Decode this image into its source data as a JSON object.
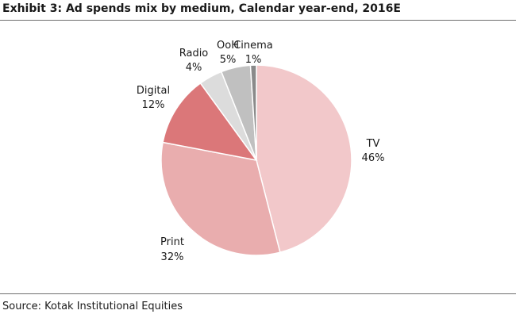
{
  "header": {
    "title": "Exhibit 3: Ad spends mix by medium, Calendar year-end, 2016E"
  },
  "footer": {
    "source": "Source: Kotak Institutional Equities"
  },
  "chart_data": {
    "type": "pie",
    "title": "Exhibit 3: Ad spends mix by medium, Calendar year-end, 2016E",
    "start_angle": "12 o'clock",
    "direction": "clockwise",
    "legend": "none",
    "slices": [
      {
        "label": "TV",
        "value": 46,
        "value_label": "46%",
        "color": "#f2c8ca"
      },
      {
        "label": "Print",
        "value": 32,
        "value_label": "32%",
        "color": "#e9adae"
      },
      {
        "label": "Digital",
        "value": 12,
        "value_label": "12%",
        "color": "#db7779"
      },
      {
        "label": "Radio",
        "value": 4,
        "value_label": "4%",
        "color": "#dcdcdc"
      },
      {
        "label": "OoH",
        "value": 5,
        "value_label": "5%",
        "color": "#c0c0c0"
      },
      {
        "label": "Cinema",
        "value": 1,
        "value_label": "1%",
        "color": "#8a8a8a"
      }
    ]
  }
}
